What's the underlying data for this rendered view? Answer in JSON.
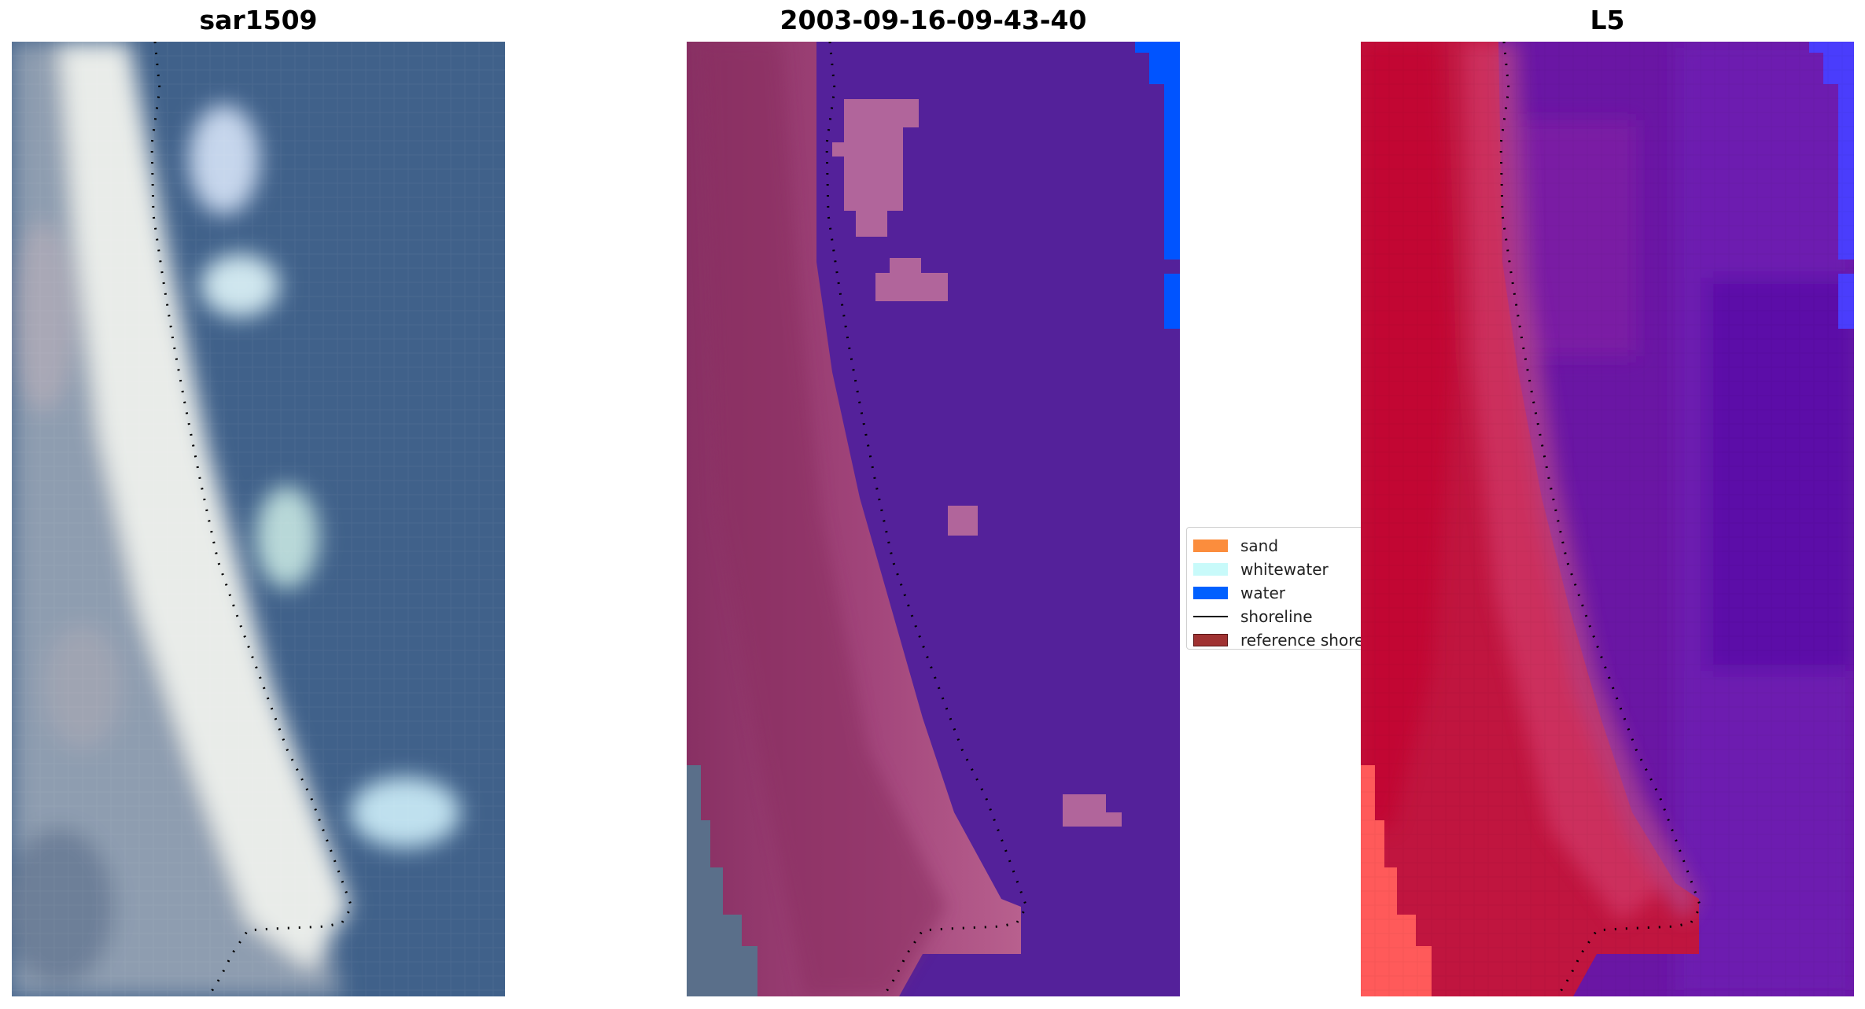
{
  "panels": [
    {
      "title": "sar1509",
      "kind": "rgb-image"
    },
    {
      "title": "2003-09-16-09-43-40",
      "kind": "classified-image"
    },
    {
      "title": "L5",
      "kind": "index-image"
    }
  ],
  "legend": {
    "items": [
      {
        "label": "sand",
        "color": "#fb8d3d",
        "style": "patch"
      },
      {
        "label": "whitewater",
        "color": "#c8fafa",
        "style": "patch"
      },
      {
        "label": "water",
        "color": "#0060ff",
        "style": "patch"
      },
      {
        "label": "shoreline",
        "color": "#000000",
        "style": "line"
      },
      {
        "label": "reference shoreline buffer",
        "color": "#a03232",
        "style": "patch"
      }
    ]
  },
  "colors": {
    "water_blue": "#3f6287",
    "sand_pink": "#b4588a",
    "classified_water": "#54219a",
    "classified_sea_edge": "#0054ff",
    "l5_land": "#c21642",
    "l5_sea": "#6412a0"
  }
}
